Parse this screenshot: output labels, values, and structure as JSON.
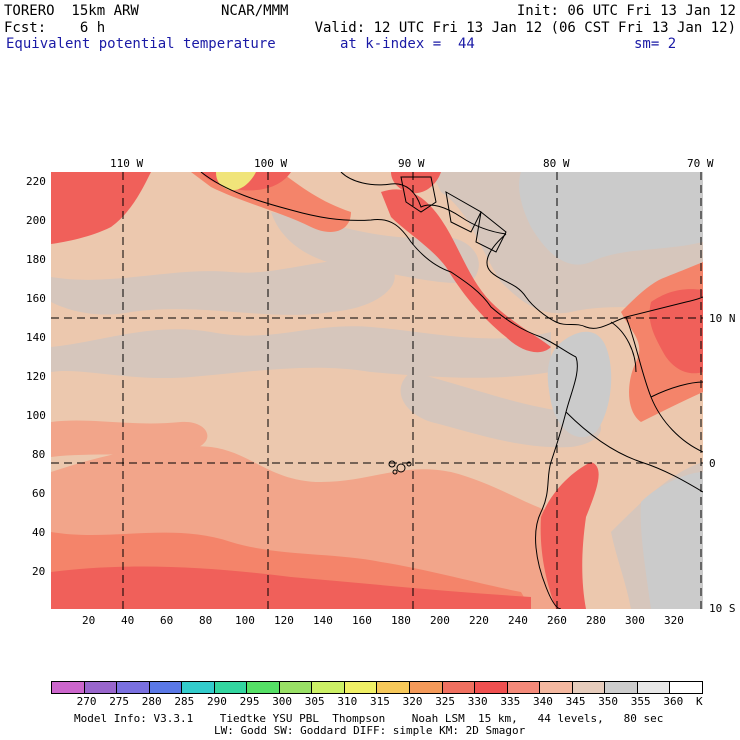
{
  "header": {
    "left1": "TORERO  15km ARW",
    "center1": "NCAR/MMM",
    "right1": "Init: 06 UTC Fri 13 Jan 12",
    "left2": "Fcst:    6 h",
    "right2": "Valid: 12 UTC Fri 13 Jan 12 (06 CST Fri 13 Jan 12)",
    "field": "Equivalent potential temperature",
    "kindex": "at k-index =  44",
    "smooth": "sm= 2"
  },
  "map": {
    "top_lon_labels": [
      "110 W",
      "100 W",
      "90 W",
      "80 W",
      "70 W"
    ],
    "right_lat_labels": [
      "10 N",
      "0",
      "10 S"
    ],
    "y_ticks": [
      "220",
      "200",
      "180",
      "160",
      "140",
      "120",
      "100",
      "80",
      "60",
      "40",
      "20"
    ],
    "x_ticks": [
      "20",
      "40",
      "60",
      "80",
      "100",
      "120",
      "140",
      "160",
      "180",
      "200",
      "220",
      "240",
      "260",
      "280",
      "300",
      "320"
    ],
    "colors": {
      "c315": "#f0e47a",
      "c330": "#f0605a",
      "c335": "#f4846a",
      "c340": "#f2a58a",
      "c345": "#ecc8ae",
      "c350": "#d6c6bc",
      "c355": "#cbcbcb"
    }
  },
  "colorbar": {
    "labels": [
      "270",
      "275",
      "280",
      "285",
      "290",
      "295",
      "300",
      "305",
      "310",
      "315",
      "320",
      "325",
      "330",
      "335",
      "340",
      "345",
      "350",
      "355",
      "360",
      "K"
    ],
    "colors": [
      "#cc66cc",
      "#9966cc",
      "#7a70e0",
      "#5a78e6",
      "#33cccc",
      "#33d6a0",
      "#55e066",
      "#99e066",
      "#ccf066",
      "#f0f066",
      "#f6c85a",
      "#f49a5a",
      "#f07060",
      "#f05050",
      "#f48a7a",
      "#f4b8a0",
      "#e6ccbc",
      "#cdcdcd",
      "#e8e8e8",
      "#ffffff"
    ]
  },
  "footer": {
    "line1": "Model Info: V3.3.1    Tiedtke YSU PBL  Thompson    Noah LSM  15 km,   44 levels,   80 sec",
    "line2": "LW: Godd SW: Goddard DIFF: simple KM: 2D Smagor"
  }
}
